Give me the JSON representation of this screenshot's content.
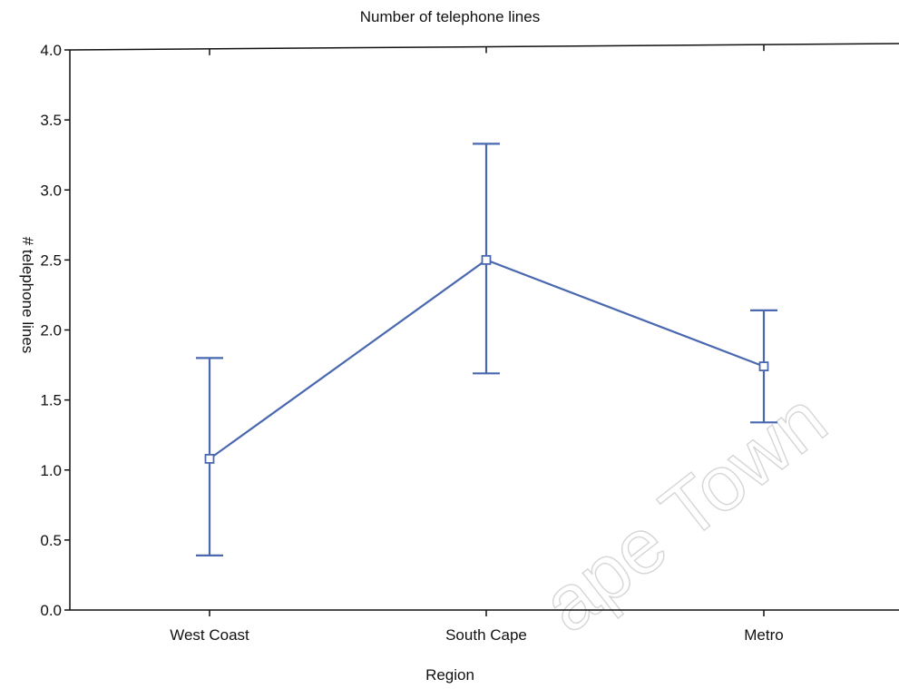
{
  "colors": {
    "series": "#4a68b0",
    "axis": "#111111",
    "watermark": "#d6d6d6"
  },
  "watermark_text": "ape Town",
  "chart_data": {
    "type": "line",
    "title": "Number of telephone lines",
    "xlabel": "Region",
    "ylabel": "# telephone lines",
    "categories": [
      "West Coast",
      "South Cape",
      "Metro"
    ],
    "series": [
      {
        "values": [
          1.08,
          2.5,
          1.74
        ],
        "error_low": [
          0.39,
          1.69,
          1.34
        ],
        "error_high": [
          1.8,
          3.33,
          2.14
        ]
      }
    ],
    "ylim": [
      0,
      4
    ],
    "yticks": [
      "0.0",
      "0.5",
      "1.0",
      "1.5",
      "2.0",
      "2.5",
      "3.0",
      "3.5",
      "4.0"
    ],
    "grid": false,
    "legend": "none"
  }
}
